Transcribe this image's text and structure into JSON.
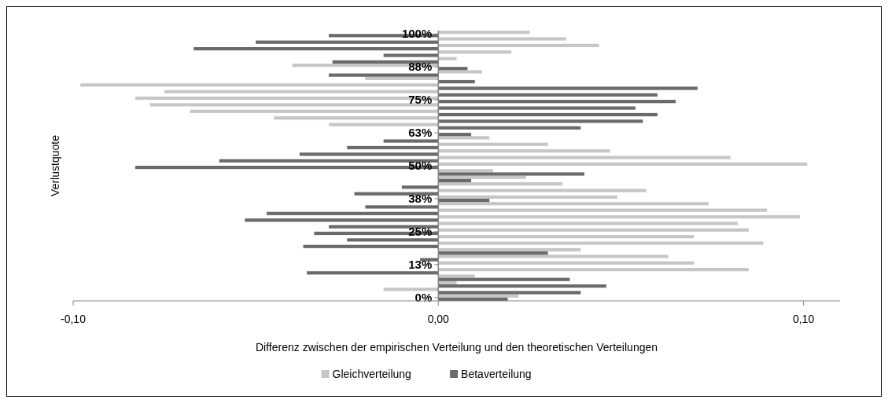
{
  "chart_data": {
    "type": "bar",
    "orientation": "horizontal",
    "xlabel": "Differenz zwischen der empirischen Verteilung und den theoretischen Verteilungen",
    "ylabel": "Verlustquote",
    "categories": [
      "100%",
      null,
      null,
      null,
      null,
      "88%",
      null,
      null,
      null,
      null,
      "75%",
      null,
      null,
      null,
      null,
      "63%",
      null,
      null,
      null,
      null,
      "50%",
      null,
      null,
      null,
      null,
      "38%",
      null,
      null,
      null,
      null,
      "25%",
      null,
      null,
      null,
      null,
      "13%",
      null,
      null,
      null,
      null,
      "0%"
    ],
    "series": [
      {
        "name": "Gleichverteilung",
        "color": "#c6c6c6",
        "values": [
          0.025,
          0.035,
          0.044,
          0.02,
          0.005,
          -0.04,
          0.012,
          -0.02,
          -0.098,
          -0.075,
          -0.083,
          -0.079,
          -0.068,
          -0.045,
          -0.03,
          null,
          0.014,
          0.03,
          0.047,
          0.08,
          0.101,
          0.015,
          0.024,
          0.034,
          0.057,
          0.049,
          0.074,
          0.09,
          0.099,
          0.082,
          0.085,
          0.07,
          0.089,
          0.039,
          0.063,
          0.07,
          0.085,
          0.01,
          0.005,
          -0.015,
          0.022
        ]
      },
      {
        "name": "Betaverteilung",
        "color": "#6a6a6a",
        "values": [
          -0.03,
          -0.05,
          -0.067,
          -0.015,
          -0.029,
          0.008,
          -0.03,
          0.01,
          0.071,
          0.06,
          0.065,
          0.054,
          0.06,
          0.056,
          0.039,
          0.009,
          -0.015,
          -0.025,
          -0.038,
          -0.06,
          -0.083,
          0.04,
          0.009,
          -0.01,
          -0.023,
          0.014,
          -0.02,
          -0.047,
          -0.053,
          -0.03,
          -0.034,
          -0.025,
          -0.037,
          0.03,
          -0.005,
          null,
          -0.036,
          0.036,
          0.046,
          0.039,
          0.019
        ]
      }
    ],
    "xlim": [
      -0.1,
      0.11
    ],
    "xticks": [
      {
        "value": -0.1,
        "label": "-0,10"
      },
      {
        "value": 0,
        "label": "0,00"
      },
      {
        "value": 0.1,
        "label": "0,10"
      }
    ],
    "grid": false,
    "legend": "bottom"
  }
}
